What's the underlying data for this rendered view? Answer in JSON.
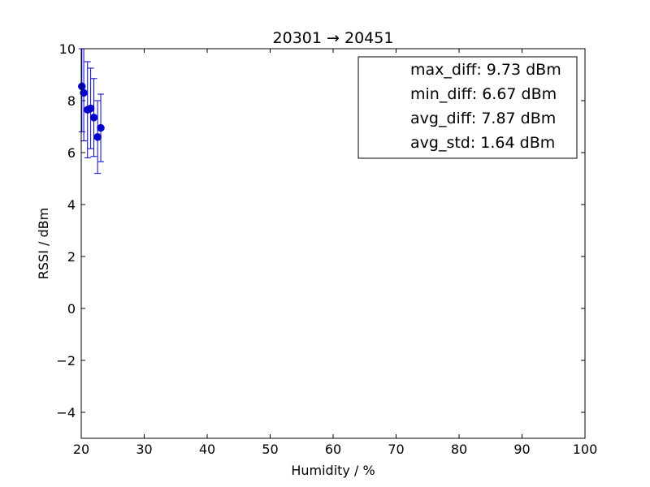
{
  "chart_data": {
    "type": "scatter",
    "title": "20301 → 20451",
    "xlabel": "Humidity / %",
    "ylabel": "RSSI / dBm",
    "xlim": [
      20,
      100
    ],
    "ylim": [
      -5,
      10
    ],
    "xticks": [
      20,
      30,
      40,
      50,
      60,
      70,
      80,
      90,
      100
    ],
    "yticks": [
      -4,
      -2,
      0,
      2,
      4,
      6,
      8,
      10
    ],
    "ytick_labels": [
      "−4",
      "−2",
      "0",
      "2",
      "4",
      "6",
      "8",
      "10"
    ],
    "grid": false,
    "marker_color": "#0000cc",
    "points": [
      {
        "x": 20.1,
        "y": 8.55,
        "err": 1.75
      },
      {
        "x": 20.4,
        "y": 8.3,
        "err": 1.85
      },
      {
        "x": 21.0,
        "y": 7.65,
        "err": 1.85
      },
      {
        "x": 21.5,
        "y": 7.7,
        "err": 1.55
      },
      {
        "x": 22.0,
        "y": 7.35,
        "err": 1.5
      },
      {
        "x": 22.6,
        "y": 6.6,
        "err": 1.4
      },
      {
        "x": 23.1,
        "y": 6.95,
        "err": 1.3
      }
    ],
    "legend": {
      "placement": "top-right",
      "entries": [
        "max_diff: 9.73 dBm",
        "min_diff: 6.67 dBm",
        "avg_diff: 7.87 dBm",
        "avg_std: 1.64 dBm"
      ]
    }
  }
}
